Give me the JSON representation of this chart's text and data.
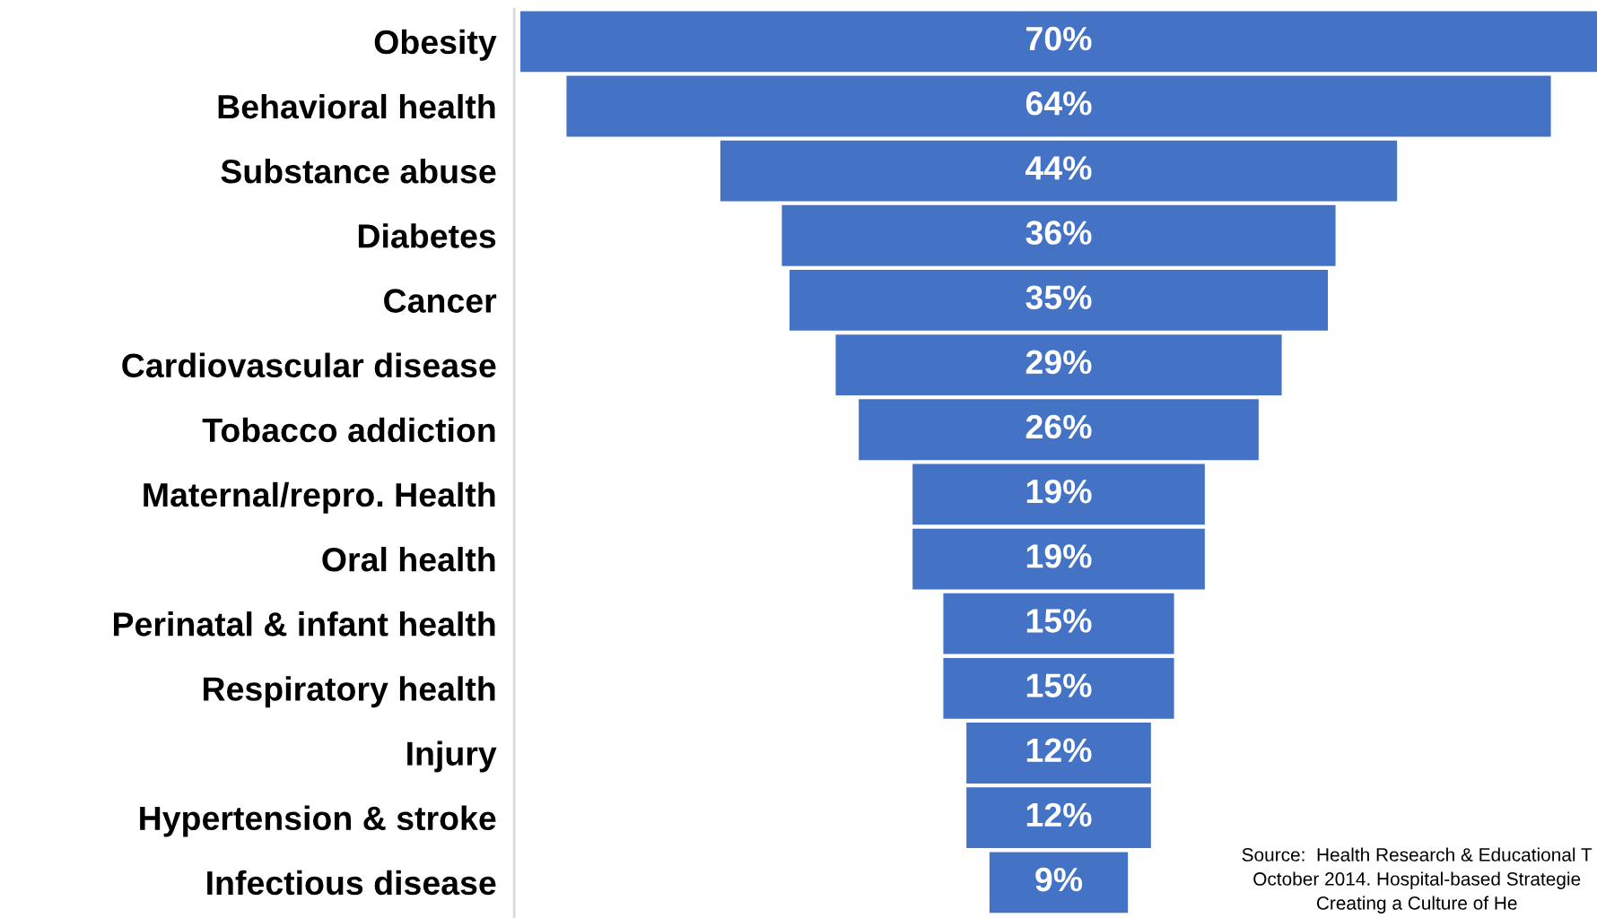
{
  "chart_data": {
    "type": "other",
    "categories": [
      "Obesity",
      "Behavioral health",
      "Substance abuse",
      "Diabetes",
      "Cancer",
      "Cardiovascular disease",
      "Tobacco addiction",
      "Maternal/repro. Health",
      "Oral health",
      "Perinatal & infant health",
      "Respiratory health",
      "Injury",
      "Hypertension & stroke",
      "Infectious disease"
    ],
    "values": [
      70,
      64,
      44,
      36,
      35,
      29,
      26,
      19,
      19,
      15,
      15,
      12,
      12,
      9
    ],
    "value_labels": [
      "70%",
      "64%",
      "44%",
      "36%",
      "35%",
      "29%",
      "26%",
      "19%",
      "19%",
      "15%",
      "15%",
      "12%",
      "12%",
      "9%"
    ],
    "color": "#4472c4",
    "annotations": [
      "Source:  Health Research & Educational T\nOctober 2014. Hospital-based Strategie\nCreating a Culture of He"
    ]
  }
}
